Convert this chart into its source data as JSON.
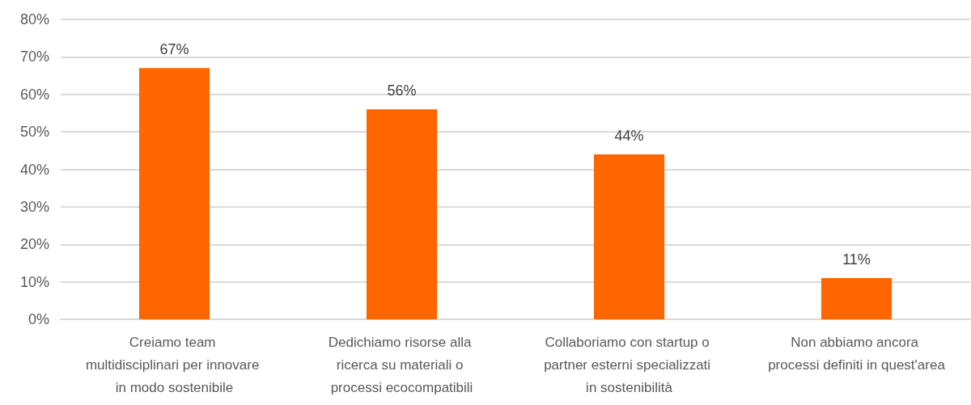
{
  "chart_data": {
    "type": "bar",
    "categories": [
      "Creiamo team multidisciplinari per innovare in modo sostenibile",
      "Dedichiamo risorse alla ricerca su materiali o processi ecocompatibili",
      "Collaboriamo con startup o partner esterni specializzati in sostenibilità",
      "Non abbiamo ancora processi definiti in quest'area"
    ],
    "values": [
      67,
      56,
      44,
      11
    ],
    "color": "#ff6600",
    "value_labels": [
      "67%",
      "56%",
      "44%",
      "11%"
    ],
    "ylim": [
      0,
      80
    ],
    "yticks": [
      {
        "value": 0,
        "label": "0%"
      },
      {
        "value": 10,
        "label": "10%"
      },
      {
        "value": 20,
        "label": "20%"
      },
      {
        "value": 30,
        "label": "30%"
      },
      {
        "value": 40,
        "label": "40%"
      },
      {
        "value": 50,
        "label": "50%"
      },
      {
        "value": 60,
        "label": "60%"
      },
      {
        "value": 70,
        "label": "70%"
      },
      {
        "value": 80,
        "label": "80%"
      }
    ],
    "grid": "y"
  }
}
